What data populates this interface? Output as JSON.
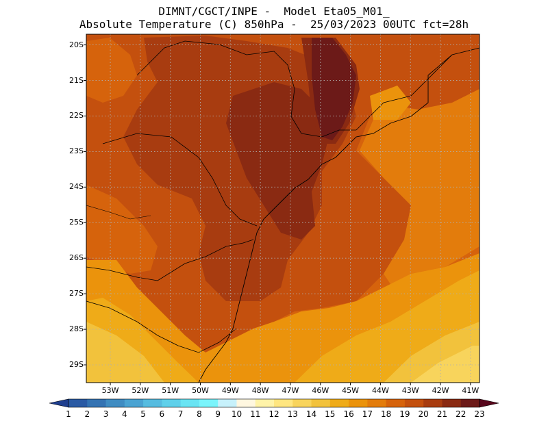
{
  "title": {
    "line1": "DIMNT/CGCT/INPE -  Model Eta05_M01_",
    "line2": "Absolute Temperature (C) 850hPa -  25/03/2023 00UTC fct=28h"
  },
  "map": {
    "lat_range": [
      -29.5,
      -19.7
    ],
    "lon_range": [
      -53.8,
      -40.7
    ],
    "lat_ticks": [
      "20S",
      "21S",
      "22S",
      "23S",
      "24S",
      "25S",
      "26S",
      "27S",
      "28S",
      "29S"
    ],
    "lon_ticks": [
      "53W",
      "52W",
      "51W",
      "50W",
      "49W",
      "48W",
      "47W",
      "46W",
      "45W",
      "44W",
      "43W",
      "42W",
      "41W"
    ]
  },
  "colorbar": {
    "labels": [
      "1",
      "2",
      "3",
      "4",
      "5",
      "6",
      "7",
      "8",
      "9",
      "10",
      "11",
      "12",
      "13",
      "14",
      "15",
      "16",
      "17",
      "18",
      "19",
      "20",
      "21",
      "22",
      "23"
    ],
    "colors": [
      "#1f3f8f",
      "#2a5aa4",
      "#3473b3",
      "#3f8cc2",
      "#4aa3d2",
      "#56bce0",
      "#5fd0ea",
      "#69e4f3",
      "#7af4fb",
      "#c7f1fb",
      "#fff7e0",
      "#fff3a8",
      "#ffe680",
      "#f8d45c",
      "#f2c23c",
      "#efab18",
      "#eb930c",
      "#e37c0c",
      "#d6630c",
      "#c4500e",
      "#a83c10",
      "#8a2a12",
      "#6c1a18",
      "#58061c"
    ]
  }
}
